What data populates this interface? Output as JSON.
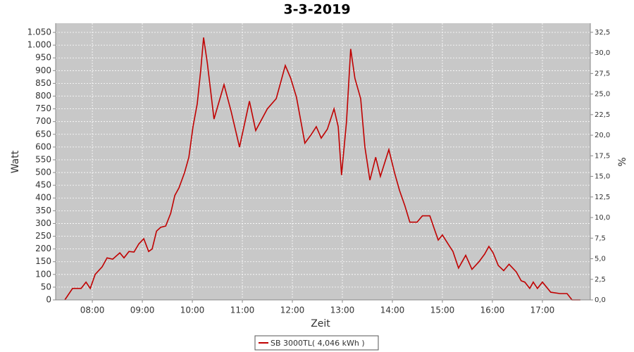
{
  "chart_data": {
    "type": "line",
    "title": "3-3-2019",
    "x_label": "Zeit",
    "y_label": "Watt",
    "y2_label": "%",
    "x": [
      447,
      456.3,
      462,
      466.5,
      472.4,
      477.5,
      483.4,
      491.8,
      497.7,
      504.5,
      513,
      518,
      524,
      530,
      535.8,
      541.7,
      547.6,
      551.8,
      557,
      562,
      568,
      574,
      579,
      584,
      590.7,
      595.8,
      600.8,
      605.9,
      610,
      613.5,
      618,
      626,
      638,
      646.5,
      656.6,
      668.5,
      676,
      690,
      700.6,
      711.5,
      718,
      725,
      735,
      742.8,
      748.7,
      754.6,
      762,
      770,
      775,
      779,
      785,
      790,
      795,
      802,
      807,
      813,
      820,
      825.6,
      835.8,
      842.5,
      848.5,
      855,
      861,
      869.6,
      876,
      885,
      890.7,
      895,
      900,
      906.8,
      912.7,
      919.4,
      928,
      935.5,
      944,
      950.7,
      955.8,
      960.9,
      967,
      973.5,
      980,
      988.7,
      994.6,
      998.9,
      1004.8,
      1009,
      1014,
      1020,
      1030,
      1041,
      1049.6,
      1055.5,
      1065.6
    ],
    "series": [
      {
        "name": "SB 3000TL( 4,046 kWh )",
        "color": "#c00000",
        "values": [
          0,
          45,
          45,
          45,
          70,
          45,
          100,
          130,
          165,
          160,
          185,
          165,
          190,
          188,
          220,
          240,
          190,
          200,
          270,
          285,
          290,
          340,
          410,
          440,
          500,
          560,
          680,
          770,
          900,
          1030,
          930,
          710,
          845,
          740,
          600,
          780,
          665,
          750,
          790,
          920,
          870,
          795,
          615,
          650,
          680,
          635,
          670,
          750,
          680,
          490,
          700,
          985,
          870,
          790,
          600,
          470,
          560,
          485,
          590,
          500,
          430,
          370,
          305,
          305,
          330,
          330,
          275,
          235,
          255,
          220,
          190,
          125,
          175,
          120,
          150,
          180,
          210,
          185,
          135,
          115,
          140,
          110,
          75,
          70,
          45,
          70,
          45,
          70,
          30,
          25,
          25,
          0,
          0
        ]
      }
    ],
    "xlim": [
      436,
      1077.5
    ],
    "xticks": [
      {
        "value": 480,
        "label": "08:00"
      },
      {
        "value": 540,
        "label": "09:00"
      },
      {
        "value": 600,
        "label": "10:00"
      },
      {
        "value": 660,
        "label": "11:00"
      },
      {
        "value": 720,
        "label": "12:00"
      },
      {
        "value": 780,
        "label": "13:00"
      },
      {
        "value": 840,
        "label": "14:00"
      },
      {
        "value": 900,
        "label": "15:00"
      },
      {
        "value": 960,
        "label": "16:00"
      },
      {
        "value": 1020,
        "label": "17:00"
      }
    ],
    "ylim": [
      0,
      1086
    ],
    "yticks": [
      0,
      50,
      100,
      150,
      200,
      250,
      300,
      350,
      400,
      450,
      500,
      550,
      600,
      650,
      700,
      750,
      800,
      850,
      900,
      950,
      {
        "value": 1000,
        "label": "1.000"
      },
      {
        "value": 1050,
        "label": "1.050"
      }
    ],
    "y2lim": [
      0,
      33.6
    ],
    "y2ticks": [
      {
        "value": 0,
        "label": "0,0"
      },
      {
        "value": 2.5,
        "label": "2,5"
      },
      {
        "value": 5,
        "label": "5,0"
      },
      {
        "value": 7.5,
        "label": "7,5"
      },
      {
        "value": 10,
        "label": "10,0"
      },
      {
        "value": 12.5,
        "label": "12,5"
      },
      {
        "value": 15,
        "label": "15,0"
      },
      {
        "value": 17.5,
        "label": "17,5"
      },
      {
        "value": 20,
        "label": "20,0"
      },
      {
        "value": 22.5,
        "label": "22,5"
      },
      {
        "value": 25,
        "label": "25,0"
      },
      {
        "value": 27.5,
        "label": "27,5"
      },
      {
        "value": 30,
        "label": "30,0"
      },
      {
        "value": 32.5,
        "label": "32,5"
      }
    ],
    "grid": true,
    "legend": "bottom"
  }
}
